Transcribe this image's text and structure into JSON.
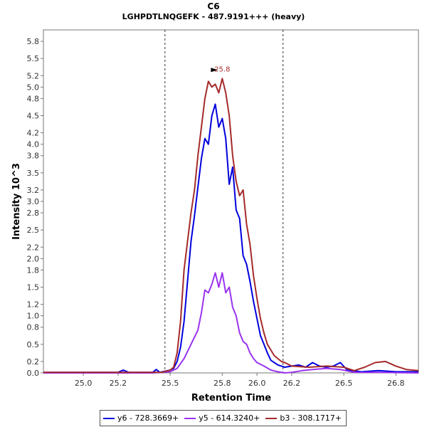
{
  "chart_data": {
    "type": "line",
    "title": "C6",
    "subtitle": "LGHPDTLNQGEFK - 487.9191+++ (heavy)",
    "xlabel": "Retention Time",
    "ylabel": "Intensity 10^3",
    "xlim": [
      24.77,
      26.93
    ],
    "ylim": [
      0.0,
      6.0
    ],
    "x_ticks": [
      25.0,
      25.2,
      25.5,
      25.8,
      26.0,
      26.2,
      26.5,
      26.8
    ],
    "x_tick_labels": [
      "25.0",
      "25.2",
      "25.5",
      "25.8",
      "26.0",
      "26.2",
      "26.5",
      "26.8"
    ],
    "y_ticks": [
      0.0,
      0.2,
      0.5,
      0.8,
      1.0,
      1.2,
      1.5,
      1.8,
      2.0,
      2.2,
      2.5,
      2.8,
      3.0,
      3.2,
      3.5,
      3.8,
      4.0,
      4.2,
      4.5,
      4.8,
      5.0,
      5.2,
      5.5,
      5.8
    ],
    "y_tick_labels": [
      "0.0",
      "0.2",
      "0.5",
      "0.8",
      "1.0",
      "1.2",
      "1.5",
      "1.8",
      "2.0",
      "2.2",
      "2.5",
      "2.8",
      "3.0",
      "3.2",
      "3.5",
      "3.8",
      "4.0",
      "4.2",
      "4.5",
      "4.8",
      "5.0",
      "5.2",
      "5.5",
      "5.8"
    ],
    "integration_boundaries": [
      25.47,
      26.15
    ],
    "peak_annotation": {
      "x": 25.8,
      "y": 5.15,
      "label": "25.8",
      "color": "#a52a2a"
    },
    "series": [
      {
        "name": "y6 - 728.3669+",
        "color": "#0000dd",
        "x": [
          24.77,
          25.2,
          25.23,
          25.26,
          25.4,
          25.42,
          25.44,
          25.5,
          25.52,
          25.54,
          25.56,
          25.58,
          25.6,
          25.62,
          25.64,
          25.66,
          25.68,
          25.7,
          25.72,
          25.74,
          25.76,
          25.78,
          25.8,
          25.82,
          25.84,
          25.86,
          25.88,
          25.9,
          25.92,
          25.94,
          25.96,
          25.98,
          26.0,
          26.02,
          26.04,
          26.06,
          26.08,
          26.1,
          26.12,
          26.14,
          26.16,
          26.2,
          26.24,
          26.28,
          26.32,
          26.36,
          26.4,
          26.44,
          26.48,
          26.52,
          26.6,
          26.7,
          26.8,
          26.93
        ],
        "values": [
          0.01,
          0.01,
          0.05,
          0.01,
          0.01,
          0.06,
          0.01,
          0.05,
          0.08,
          0.2,
          0.45,
          0.9,
          1.6,
          2.3,
          2.75,
          3.25,
          3.75,
          4.1,
          4.0,
          4.5,
          4.7,
          4.3,
          4.45,
          4.1,
          3.3,
          3.6,
          2.85,
          2.7,
          2.05,
          1.9,
          1.6,
          1.25,
          0.95,
          0.65,
          0.5,
          0.35,
          0.22,
          0.18,
          0.14,
          0.12,
          0.1,
          0.12,
          0.14,
          0.1,
          0.18,
          0.12,
          0.1,
          0.12,
          0.18,
          0.05,
          0.02,
          0.04,
          0.02,
          0.02
        ]
      },
      {
        "name": "y5 - 614.3240+",
        "color": "#9933ee",
        "x": [
          24.77,
          25.4,
          25.5,
          25.54,
          25.58,
          25.62,
          25.66,
          25.68,
          25.7,
          25.72,
          25.74,
          25.76,
          25.78,
          25.8,
          25.82,
          25.84,
          25.86,
          25.88,
          25.9,
          25.92,
          25.94,
          25.96,
          25.98,
          26.0,
          26.04,
          26.08,
          26.12,
          26.16,
          26.2,
          26.26,
          26.32,
          26.4,
          26.48,
          26.56,
          26.7,
          26.93
        ],
        "values": [
          0.0,
          0.0,
          0.02,
          0.08,
          0.25,
          0.5,
          0.75,
          1.05,
          1.45,
          1.4,
          1.55,
          1.75,
          1.5,
          1.75,
          1.4,
          1.5,
          1.15,
          1.0,
          0.7,
          0.55,
          0.5,
          0.35,
          0.25,
          0.18,
          0.12,
          0.05,
          0.02,
          0.0,
          0.01,
          0.04,
          0.06,
          0.08,
          0.06,
          0.01,
          0.01,
          0.0
        ]
      },
      {
        "name": "b3 - 308.1717+",
        "color": "#a52a2a",
        "x": [
          24.77,
          25.45,
          25.5,
          25.52,
          25.54,
          25.56,
          25.58,
          25.6,
          25.62,
          25.64,
          25.66,
          25.68,
          25.7,
          25.72,
          25.74,
          25.76,
          25.78,
          25.8,
          25.82,
          25.84,
          25.86,
          25.88,
          25.9,
          25.92,
          25.94,
          25.96,
          25.98,
          26.0,
          26.02,
          26.04,
          26.06,
          26.08,
          26.1,
          26.12,
          26.14,
          26.16,
          26.2,
          26.3,
          26.4,
          26.5,
          26.56,
          26.62,
          26.68,
          26.74,
          26.8,
          26.86,
          26.93
        ],
        "values": [
          0.01,
          0.01,
          0.05,
          0.1,
          0.35,
          0.9,
          1.8,
          2.3,
          2.8,
          3.2,
          3.8,
          4.3,
          4.8,
          5.1,
          5.0,
          5.05,
          4.9,
          5.15,
          4.9,
          4.5,
          3.8,
          3.35,
          3.1,
          3.2,
          2.6,
          2.25,
          1.7,
          1.3,
          0.95,
          0.7,
          0.5,
          0.4,
          0.3,
          0.25,
          0.2,
          0.18,
          0.12,
          0.1,
          0.12,
          0.1,
          0.04,
          0.1,
          0.18,
          0.2,
          0.12,
          0.06,
          0.04
        ]
      }
    ]
  }
}
